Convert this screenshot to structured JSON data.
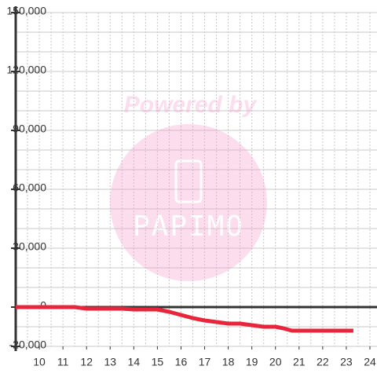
{
  "chart_data": {
    "type": "line",
    "watermark": {
      "title": "Powered by",
      "logo": "PAPIMO"
    },
    "x": [
      9,
      11.5,
      12,
      13.5,
      14,
      15,
      15.5,
      16,
      16.5,
      17,
      17.5,
      18,
      18.5,
      19,
      19.5,
      20,
      20.33,
      20.7,
      23.3
    ],
    "series": [
      {
        "color": "#e8253a",
        "values": [
          0,
          0,
          -800,
          -800,
          -1200,
          -1200,
          -2400,
          -4000,
          -5600,
          -6800,
          -7600,
          -8400,
          -8400,
          -9200,
          -10000,
          -10000,
          -10800,
          -12000,
          -12000
        ]
      }
    ],
    "xlim": [
      9,
      24.3
    ],
    "xticks": [
      10,
      11,
      12,
      13,
      14,
      15,
      16,
      17,
      18,
      19,
      20,
      21,
      22,
      23,
      24
    ],
    "xgrid": [
      9.5,
      10,
      10.5,
      11,
      11.5,
      12,
      12.5,
      13,
      13.5,
      14,
      14.5,
      15,
      15.5,
      16,
      16.5,
      17,
      17.5,
      18,
      18.5,
      19,
      19.5,
      20,
      20.5,
      21,
      21.5,
      22,
      22.5,
      23,
      23.5,
      24
    ],
    "ylim": [
      -20000,
      150000
    ],
    "yticks": [
      {
        "value": -20000,
        "label": "-20,000"
      },
      0,
      {
        "value": 30000,
        "label": "30,000"
      },
      {
        "value": 60000,
        "label": "60,000"
      },
      {
        "value": 90000,
        "label": "90,000"
      },
      {
        "value": 120000,
        "label": "120,000"
      },
      {
        "value": 150000,
        "label": "150,000"
      }
    ],
    "ygrid": [
      -20000,
      -10000,
      10000,
      20000,
      30000,
      40000,
      50000,
      60000,
      70000,
      80000,
      90000,
      100000,
      110000,
      120000,
      130000,
      140000,
      150000
    ],
    "grid": true
  }
}
